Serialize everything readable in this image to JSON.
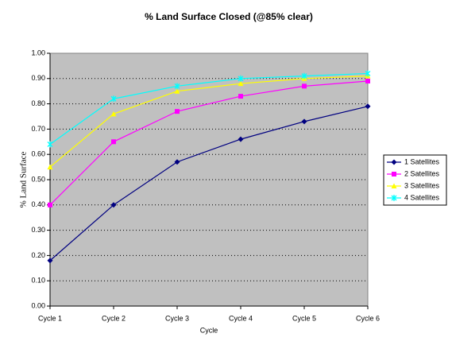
{
  "chart_data": {
    "type": "line",
    "title": "% Land Surface Closed (@85% clear)",
    "x_label": "Cycle",
    "y_label": "% Land Surface",
    "categories": [
      "Cycle 1",
      "Cycle 2",
      "Cycle 3",
      "Cycle 4",
      "Cycle 5",
      "Cycle 6"
    ],
    "series": [
      {
        "name": "1 Satellites",
        "color": "#000080",
        "marker": "diamond",
        "values": [
          0.18,
          0.4,
          0.57,
          0.66,
          0.73,
          0.79
        ]
      },
      {
        "name": "2 Satellites",
        "color": "#ff00ff",
        "marker": "square",
        "values": [
          0.4,
          0.65,
          0.77,
          0.83,
          0.87,
          0.89
        ]
      },
      {
        "name": "3 Satellites",
        "color": "#ffff00",
        "marker": "triangle",
        "values": [
          0.55,
          0.76,
          0.85,
          0.88,
          0.9,
          0.91
        ]
      },
      {
        "name": "4 Satellites",
        "color": "#00ffff",
        "marker": "star",
        "values": [
          0.64,
          0.82,
          0.87,
          0.9,
          0.91,
          0.92
        ]
      }
    ],
    "ylim": [
      0,
      1
    ],
    "yticks": [
      {
        "value": 0,
        "label": "0.00"
      },
      {
        "value": 0.1,
        "label": "0.10"
      },
      {
        "value": 0.2,
        "label": "0.20"
      },
      {
        "value": 0.3,
        "label": "0.30"
      },
      {
        "value": 0.4,
        "label": "0.40"
      },
      {
        "value": 0.5,
        "label": "0.50"
      },
      {
        "value": 0.6,
        "label": "0.60"
      },
      {
        "value": 0.7,
        "label": "0.70"
      },
      {
        "value": 0.8,
        "label": "0.80"
      },
      {
        "value": 0.9,
        "label": "0.90"
      },
      {
        "value": 1,
        "label": "1.00"
      }
    ],
    "grid": true,
    "legend": "right",
    "plot_background": "#c0c0c0"
  }
}
